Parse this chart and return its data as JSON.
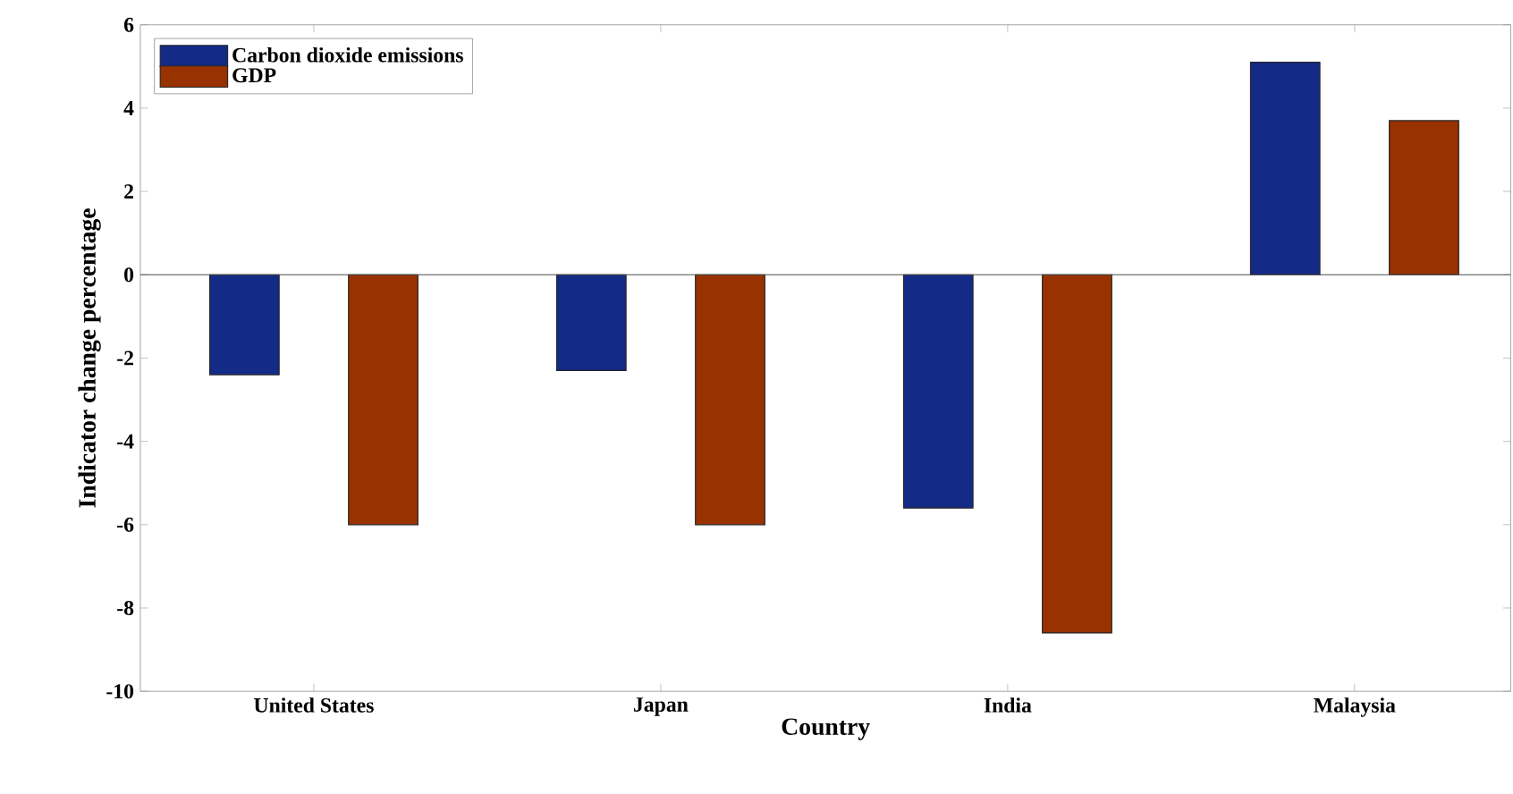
{
  "chart_data": {
    "type": "bar",
    "xlabel": "Country",
    "ylabel": "Indicator change percentage",
    "categories": [
      "United States",
      "Japan",
      "India",
      "Malaysia"
    ],
    "series": [
      {
        "name": "Carbon dioxide emissions",
        "color": "#142a87",
        "values": [
          -2.4,
          -2.3,
          -5.6,
          5.1
        ]
      },
      {
        "name": "GDP",
        "color": "#983200",
        "values": [
          -6.0,
          -6.0,
          -8.6,
          3.7
        ]
      }
    ],
    "ylim": [
      -10,
      6
    ],
    "yticks": [
      -10,
      -8,
      -6,
      -4,
      -2,
      0,
      2,
      4,
      6
    ],
    "ref_lines": [
      {
        "axis": "y",
        "value": 0,
        "color": "#4d4d4d"
      }
    ],
    "legend": "top left"
  }
}
